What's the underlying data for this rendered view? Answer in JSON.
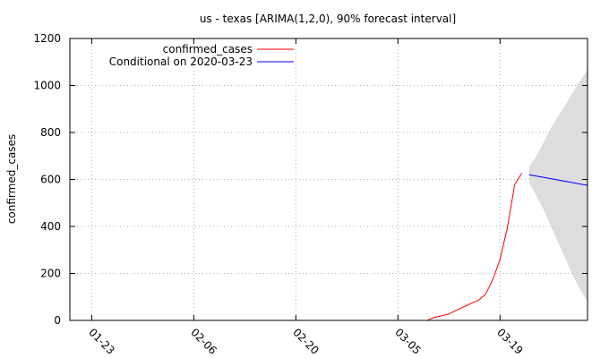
{
  "chart_data": {
    "type": "line",
    "title": "us - texas [ARIMA(1,2,0), 90% forecast interval]",
    "xlabel": "",
    "ylabel": "confirmed_cases",
    "xlim": [
      "2020-01-20",
      "2020-03-31"
    ],
    "ylim": [
      0,
      1200
    ],
    "yticks": [
      0,
      200,
      400,
      600,
      800,
      1000,
      1200
    ],
    "xticks": [
      "01-23",
      "02-06",
      "02-20",
      "03-05",
      "03-19"
    ],
    "xtick_dates": [
      "2020-01-23",
      "2020-02-06",
      "2020-02-20",
      "2020-03-05",
      "2020-03-19"
    ],
    "grid": true,
    "legend_position": "top-left",
    "series": [
      {
        "name": "confirmed_cases",
        "color": "#ff0000",
        "x": [
          "2020-03-09",
          "2020-03-10",
          "2020-03-11",
          "2020-03-12",
          "2020-03-13",
          "2020-03-14",
          "2020-03-15",
          "2020-03-16",
          "2020-03-17",
          "2020-03-18",
          "2020-03-19",
          "2020-03-20",
          "2020-03-21",
          "2020-03-22"
        ],
        "y": [
          0,
          13,
          20,
          27,
          43,
          57,
          72,
          85,
          110,
          173,
          260,
          394,
          577,
          627
        ]
      },
      {
        "name": "Conditional on 2020-03-23",
        "color": "#0000ff",
        "x": [
          "2020-03-23",
          "2020-03-31"
        ],
        "y": [
          620,
          575
        ]
      }
    ],
    "forecast_interval": {
      "color": "#dddddd",
      "x": [
        "2020-03-23",
        "2020-03-24",
        "2020-03-25",
        "2020-03-26",
        "2020-03-27",
        "2020-03-28",
        "2020-03-29",
        "2020-03-30",
        "2020-03-31"
      ],
      "upper": [
        655,
        700,
        760,
        820,
        870,
        920,
        970,
        1020,
        1070
      ],
      "lower": [
        585,
        530,
        470,
        400,
        330,
        260,
        190,
        130,
        80
      ]
    }
  }
}
